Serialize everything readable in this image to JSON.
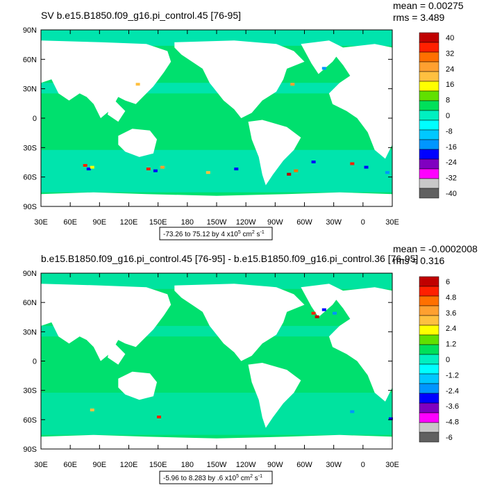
{
  "panels": [
    {
      "title": "SV b.e15.B1850.f09_g16.pi_control.45 [76-95]",
      "stat_mean": "mean = 0.00275",
      "stat_rms": "rms = 3.489",
      "range_label": "-73.26 to 75.12 by 4 x10",
      "units_exp": "5",
      "units_a": " cm",
      "units_b": "2",
      "units_c": " s",
      "units_d": "-1",
      "colorbar_labels": [
        "40",
        "32",
        "24",
        "16",
        "8",
        "0",
        "-8",
        "-16",
        "-24",
        "-32",
        "-40"
      ]
    },
    {
      "title": "b.e15.B1850.f09_g16.pi_control.45 [76-95] - b.e15.B1850.f09_g16.pi_control.36 [76-95]",
      "stat_mean": "mean = -0.0002008",
      "stat_rms": "rms = 0.316",
      "range_label": "-5.96 to 8.283 by .6 x10",
      "units_exp": "5",
      "units_a": " cm",
      "units_b": "2",
      "units_c": " s",
      "units_d": "-1",
      "colorbar_labels": [
        "6",
        "4.8",
        "3.6",
        "2.4",
        "1.2",
        "0",
        "-1.2",
        "-2.4",
        "-3.6",
        "-4.8",
        "-6"
      ]
    }
  ],
  "lat_labels": [
    "90N",
    "60N",
    "30N",
    "0",
    "30S",
    "60S",
    "90S"
  ],
  "lon_labels": [
    "30E",
    "60E",
    "90E",
    "120E",
    "150E",
    "180",
    "150W",
    "120W",
    "90W",
    "60W",
    "30W",
    "0",
    "30E"
  ],
  "colors": {
    "ocean_main": "#00e06e",
    "ocean_alt": "#00e6c8",
    "land": "#ffffff",
    "colorbar": [
      "#c00000",
      "#ff2000",
      "#ff7000",
      "#ffa030",
      "#ffc040",
      "#ffff00",
      "#60e000",
      "#00e05a",
      "#00f0c0",
      "#00ffff",
      "#00c8ff",
      "#0096ff",
      "#0000ff",
      "#8000c0",
      "#ff00ff",
      "#c8c8c8",
      "#606060"
    ]
  }
}
